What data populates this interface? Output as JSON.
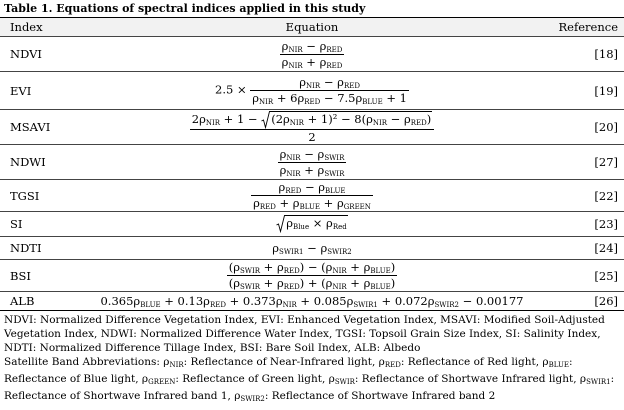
{
  "table": {
    "caption": "Table 1. Equations of spectral indices applied in this study",
    "headers": [
      "Index",
      "Equation",
      "Reference"
    ],
    "rows": [
      {
        "index": "NDVI",
        "equation": {
          "num": [
            {
              "b": "ρ",
              "s": "NIR"
            },
            " − ",
            {
              "b": "ρ",
              "s": "RED"
            }
          ],
          "den": [
            {
              "b": "ρ",
              "s": "NIR"
            },
            " + ",
            {
              "b": "ρ",
              "s": "RED"
            }
          ]
        },
        "reference": "[18]"
      },
      {
        "index": "EVI",
        "equation": {
          "pre": [
            "2.5 × "
          ],
          "num": [
            {
              "b": "ρ",
              "s": "NIR"
            },
            " − ",
            {
              "b": "ρ",
              "s": "RED"
            }
          ],
          "den": [
            {
              "b": "ρ",
              "s": "NIR"
            },
            " + 6",
            {
              "b": "ρ",
              "s": "RED"
            },
            " − 7.5",
            {
              "b": "ρ",
              "s": "BLUE"
            },
            " + 1"
          ]
        },
        "reference": "[19]"
      },
      {
        "index": "MSAVI",
        "equation": {
          "num": [
            "2",
            {
              "b": "ρ",
              "s": "NIR"
            },
            " + 1 − ",
            {
              "sqrt": [
                "(2",
                {
                  "b": "ρ",
                  "s": "NIR"
                },
                " + 1)² − 8(",
                {
                  "b": "ρ",
                  "s": "NIR"
                },
                " − ",
                {
                  "b": "ρ",
                  "s": "RED"
                },
                ")"
              ]
            }
          ],
          "den": [
            "2"
          ]
        },
        "reference": "[20]"
      },
      {
        "index": "NDWI",
        "equation": {
          "num": [
            {
              "b": "ρ",
              "s": "NIR"
            },
            " − ",
            {
              "b": "ρ",
              "s": "SWIR"
            }
          ],
          "den": [
            {
              "b": "ρ",
              "s": "NIR"
            },
            " + ",
            {
              "b": "ρ",
              "s": "SWIR"
            }
          ]
        },
        "reference": "[27]"
      },
      {
        "index": "TGSI",
        "equation": {
          "num": [
            {
              "b": "ρ",
              "s": "RED"
            },
            " − ",
            {
              "b": "ρ",
              "s": "BLUE"
            }
          ],
          "den": [
            {
              "b": "ρ",
              "s": "RED"
            },
            " + ",
            {
              "b": "ρ",
              "s": "BLUE"
            },
            " + ",
            {
              "b": "ρ",
              "s": "GREEN"
            }
          ]
        },
        "reference": "[22]"
      },
      {
        "index": "SI",
        "equation": {
          "expr": [
            {
              "sqrt": [
                {
                  "b": "ρ",
                  "s": "Blue"
                },
                " × ",
                {
                  "b": "ρ",
                  "s": "Red"
                }
              ]
            }
          ]
        },
        "reference": "[23]"
      },
      {
        "index": "NDTI",
        "equation": {
          "expr": [
            {
              "b": "ρ",
              "s": "SWIR1"
            },
            " − ",
            {
              "b": "ρ",
              "s": "SWIR2"
            }
          ]
        },
        "reference": "[24]"
      },
      {
        "index": "BSI",
        "equation": {
          "num": [
            "(",
            {
              "b": "ρ",
              "s": "SWIR"
            },
            " + ",
            {
              "b": "ρ",
              "s": "RED"
            },
            ") − (",
            {
              "b": "ρ",
              "s": "NIR"
            },
            " + ",
            {
              "b": "ρ",
              "s": "BLUE"
            },
            ")"
          ],
          "den": [
            "(",
            {
              "b": "ρ",
              "s": "SWIR"
            },
            " + ",
            {
              "b": "ρ",
              "s": "RED"
            },
            ") + (",
            {
              "b": "ρ",
              "s": "NIR"
            },
            " + ",
            {
              "b": "ρ",
              "s": "BLUE"
            },
            ")"
          ]
        },
        "reference": "[25]"
      },
      {
        "index": "ALB",
        "equation": {
          "expr": [
            "0.365",
            {
              "b": "ρ",
              "s": "BLUE"
            },
            " + 0.13",
            {
              "b": "ρ",
              "s": "RED"
            },
            " + 0.373",
            {
              "b": "ρ",
              "s": "NIR"
            },
            " + 0.085",
            {
              "b": "ρ",
              "s": "SWIR1"
            },
            " + 0.072",
            {
              "b": "ρ",
              "s": "SWIR2"
            },
            " − 0.00177"
          ]
        },
        "reference": "[26]"
      }
    ],
    "notes": [
      [
        "NDVI: Normalized Difference Vegetation Index, EVI: Enhanced Vegetation Index, MSAVI: Modified Soil-Adjusted Vegetation Index, NDWI: Normalized Difference Water Index, TGSI: Topsoil Grain Size Index, SI: Salinity Index, NDTI: Normalized Difference Tillage Index, BSI: Bare Soil Index, ALB: Albedo"
      ],
      [
        "Satellite Band Abbreviations: ",
        {
          "b": "ρ",
          "s": "NIR"
        },
        ": Reflectance of Near-Infrared light, ",
        {
          "b": "ρ",
          "s": "RED"
        },
        ": Reflectance of Red light, ",
        {
          "b": "ρ",
          "s": "BLUE"
        },
        ": Reflectance of Blue light, ",
        {
          "b": "ρ",
          "s": "GREEN"
        },
        ": Reflectance of Green light, ",
        {
          "b": "ρ",
          "s": "SWIR"
        },
        ": Reflectance of Shortwave Infrared light, ",
        {
          "b": "ρ",
          "s": "SWIR1"
        },
        ": Reflectance of Shortwave Infrared band 1, ",
        {
          "b": "ρ",
          "s": "SWIR2"
        },
        ": Reflectance of Shortwave Infrared band 2"
      ]
    ]
  }
}
